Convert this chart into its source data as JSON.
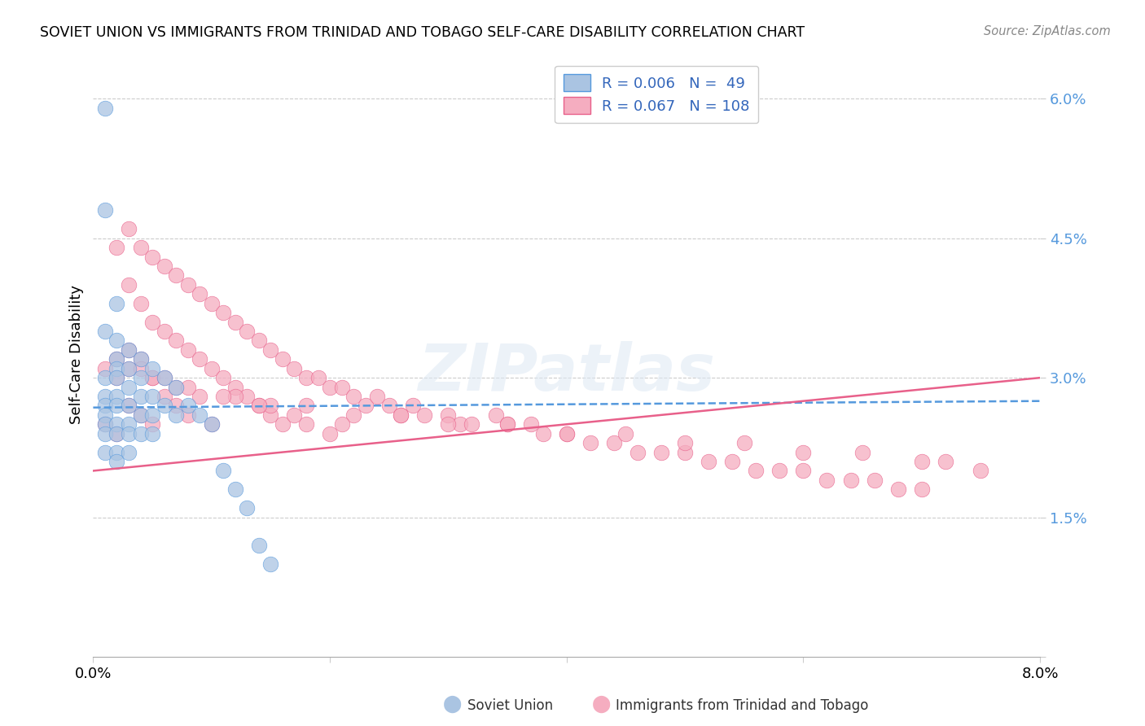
{
  "title": "SOVIET UNION VS IMMIGRANTS FROM TRINIDAD AND TOBAGO SELF-CARE DISABILITY CORRELATION CHART",
  "source": "Source: ZipAtlas.com",
  "ylabel": "Self-Care Disability",
  "xlim": [
    0.0,
    0.08
  ],
  "ylim": [
    0.0,
    0.065
  ],
  "ytick_vals": [
    0.0,
    0.015,
    0.03,
    0.045,
    0.06
  ],
  "ytick_labels": [
    "",
    "1.5%",
    "3.0%",
    "4.5%",
    "6.0%"
  ],
  "xtick_vals": [
    0.0,
    0.02,
    0.04,
    0.06,
    0.08
  ],
  "xtick_labels": [
    "0.0%",
    "",
    "",
    "",
    "8.0%"
  ],
  "soviet_color": "#aac4e2",
  "trinidad_color": "#f5adc0",
  "soviet_line_color": "#5599dd",
  "trinidad_line_color": "#e8608a",
  "watermark": "ZIPatlas",
  "legend_r_soviet": "0.006",
  "legend_n_soviet": "49",
  "legend_r_trinidad": "0.067",
  "legend_n_trinidad": "108",
  "soviet_x": [
    0.001,
    0.001,
    0.001,
    0.001,
    0.001,
    0.001,
    0.001,
    0.001,
    0.001,
    0.001,
    0.002,
    0.002,
    0.002,
    0.002,
    0.002,
    0.002,
    0.002,
    0.002,
    0.002,
    0.002,
    0.002,
    0.003,
    0.003,
    0.003,
    0.003,
    0.003,
    0.003,
    0.003,
    0.004,
    0.004,
    0.004,
    0.004,
    0.004,
    0.005,
    0.005,
    0.005,
    0.005,
    0.006,
    0.006,
    0.007,
    0.007,
    0.008,
    0.009,
    0.01,
    0.011,
    0.012,
    0.013,
    0.014,
    0.015
  ],
  "soviet_y": [
    0.059,
    0.048,
    0.035,
    0.03,
    0.028,
    0.027,
    0.026,
    0.025,
    0.024,
    0.022,
    0.038,
    0.034,
    0.032,
    0.031,
    0.03,
    0.028,
    0.027,
    0.025,
    0.024,
    0.022,
    0.021,
    0.033,
    0.031,
    0.029,
    0.027,
    0.025,
    0.024,
    0.022,
    0.032,
    0.03,
    0.028,
    0.026,
    0.024,
    0.031,
    0.028,
    0.026,
    0.024,
    0.03,
    0.027,
    0.029,
    0.026,
    0.027,
    0.026,
    0.025,
    0.02,
    0.018,
    0.016,
    0.012,
    0.01
  ],
  "trinidad_x": [
    0.001,
    0.001,
    0.002,
    0.002,
    0.002,
    0.003,
    0.003,
    0.003,
    0.003,
    0.004,
    0.004,
    0.004,
    0.004,
    0.005,
    0.005,
    0.005,
    0.005,
    0.006,
    0.006,
    0.006,
    0.007,
    0.007,
    0.007,
    0.008,
    0.008,
    0.008,
    0.009,
    0.009,
    0.01,
    0.01,
    0.01,
    0.011,
    0.011,
    0.012,
    0.012,
    0.013,
    0.013,
    0.014,
    0.014,
    0.015,
    0.015,
    0.016,
    0.016,
    0.017,
    0.018,
    0.018,
    0.019,
    0.02,
    0.02,
    0.021,
    0.022,
    0.023,
    0.024,
    0.025,
    0.026,
    0.027,
    0.028,
    0.03,
    0.031,
    0.032,
    0.034,
    0.035,
    0.037,
    0.038,
    0.04,
    0.042,
    0.044,
    0.046,
    0.048,
    0.05,
    0.052,
    0.054,
    0.056,
    0.058,
    0.06,
    0.062,
    0.064,
    0.066,
    0.068,
    0.07,
    0.003,
    0.005,
    0.007,
    0.009,
    0.012,
    0.015,
    0.018,
    0.022,
    0.026,
    0.03,
    0.035,
    0.04,
    0.045,
    0.05,
    0.055,
    0.06,
    0.065,
    0.07,
    0.072,
    0.075,
    0.002,
    0.004,
    0.006,
    0.008,
    0.011,
    0.014,
    0.017,
    0.021
  ],
  "trinidad_y": [
    0.031,
    0.025,
    0.044,
    0.03,
    0.024,
    0.046,
    0.04,
    0.033,
    0.027,
    0.044,
    0.038,
    0.032,
    0.026,
    0.043,
    0.036,
    0.03,
    0.025,
    0.042,
    0.035,
    0.028,
    0.041,
    0.034,
    0.027,
    0.04,
    0.033,
    0.026,
    0.039,
    0.032,
    0.038,
    0.031,
    0.025,
    0.037,
    0.03,
    0.036,
    0.029,
    0.035,
    0.028,
    0.034,
    0.027,
    0.033,
    0.026,
    0.032,
    0.025,
    0.031,
    0.03,
    0.025,
    0.03,
    0.029,
    0.024,
    0.029,
    0.028,
    0.027,
    0.028,
    0.027,
    0.026,
    0.027,
    0.026,
    0.026,
    0.025,
    0.025,
    0.026,
    0.025,
    0.025,
    0.024,
    0.024,
    0.023,
    0.023,
    0.022,
    0.022,
    0.022,
    0.021,
    0.021,
    0.02,
    0.02,
    0.02,
    0.019,
    0.019,
    0.019,
    0.018,
    0.018,
    0.031,
    0.03,
    0.029,
    0.028,
    0.028,
    0.027,
    0.027,
    0.026,
    0.026,
    0.025,
    0.025,
    0.024,
    0.024,
    0.023,
    0.023,
    0.022,
    0.022,
    0.021,
    0.021,
    0.02,
    0.032,
    0.031,
    0.03,
    0.029,
    0.028,
    0.027,
    0.026,
    0.025
  ],
  "soviet_trend": [
    0.0,
    0.08,
    0.0268,
    0.0275
  ],
  "trinidad_trend": [
    0.0,
    0.08,
    0.02,
    0.03
  ]
}
